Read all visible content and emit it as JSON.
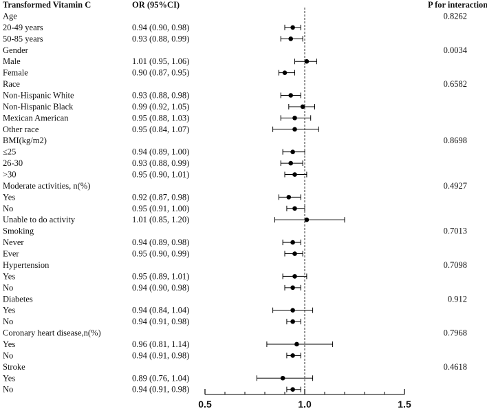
{
  "headers": {
    "group": "Transformed Vitamin C",
    "or": "OR (95%CI)",
    "p": "P for interaction"
  },
  "chart_data": {
    "type": "forest",
    "title": "",
    "xlabel": "",
    "xlim": [
      0.5,
      1.5
    ],
    "xticks": [
      0.5,
      1.0,
      1.5
    ],
    "xtick_labels": [
      "0.5",
      "1.0",
      "1.5"
    ],
    "reference_line": 1.0,
    "rows": [
      {
        "kind": "group",
        "label": "Age",
        "p": "0.8262"
      },
      {
        "kind": "item",
        "label": "20-49 years",
        "or_text": "0.94 (0.90, 0.98)",
        "or": 0.94,
        "lo": 0.9,
        "hi": 0.98
      },
      {
        "kind": "item",
        "label": "50-85 years",
        "or_text": "0.93 (0.88, 0.99)",
        "or": 0.93,
        "lo": 0.88,
        "hi": 0.99
      },
      {
        "kind": "group",
        "label": "Gender",
        "p": "0.0034"
      },
      {
        "kind": "item",
        "label": "Male",
        "or_text": "1.01 (0.95, 1.06)",
        "or": 1.01,
        "lo": 0.95,
        "hi": 1.06
      },
      {
        "kind": "item",
        "label": "Female",
        "or_text": "0.90 (0.87, 0.95)",
        "or": 0.9,
        "lo": 0.87,
        "hi": 0.95
      },
      {
        "kind": "group",
        "label": "Race",
        "p": "0.6582"
      },
      {
        "kind": "item",
        "label": "Non-Hispanic White",
        "or_text": "0.93 (0.88, 0.98)",
        "or": 0.93,
        "lo": 0.88,
        "hi": 0.98
      },
      {
        "kind": "item",
        "label": "Non-Hispanic Black",
        "or_text": "0.99 (0.92, 1.05)",
        "or": 0.99,
        "lo": 0.92,
        "hi": 1.05
      },
      {
        "kind": "item",
        "label": "Mexican American",
        "or_text": "0.95 (0.88, 1.03)",
        "or": 0.95,
        "lo": 0.88,
        "hi": 1.03
      },
      {
        "kind": "item",
        "label": "Other race",
        "or_text": "0.95 (0.84, 1.07)",
        "or": 0.95,
        "lo": 0.84,
        "hi": 1.07
      },
      {
        "kind": "group",
        "label": "BMI(kg/m2)",
        "p": "0.8698"
      },
      {
        "kind": "item",
        "label": "≤25",
        "or_text": "0.94 (0.89, 1.00)",
        "or": 0.94,
        "lo": 0.89,
        "hi": 1.0
      },
      {
        "kind": "item",
        "label": "26-30",
        "or_text": "0.93 (0.88, 0.99)",
        "or": 0.93,
        "lo": 0.88,
        "hi": 0.99
      },
      {
        "kind": "item",
        "label": ">30",
        "or_text": "0.95 (0.90, 1.01)",
        "or": 0.95,
        "lo": 0.9,
        "hi": 1.01
      },
      {
        "kind": "group",
        "label": "Moderate activities, n(%)",
        "p": "0.4927"
      },
      {
        "kind": "item",
        "label": "Yes",
        "or_text": "0.92 (0.87, 0.98)",
        "or": 0.92,
        "lo": 0.87,
        "hi": 0.98
      },
      {
        "kind": "item",
        "label": "No",
        "or_text": "0.95 (0.91, 1.00)",
        "or": 0.95,
        "lo": 0.91,
        "hi": 1.0
      },
      {
        "kind": "item",
        "label": "Unable to do activity",
        "or_text": "1.01 (0.85, 1.20)",
        "or": 1.01,
        "lo": 0.85,
        "hi": 1.2
      },
      {
        "kind": "group",
        "label": "Smoking",
        "p": "0.7013"
      },
      {
        "kind": "item",
        "label": "Never",
        "or_text": "0.94 (0.89, 0.98)",
        "or": 0.94,
        "lo": 0.89,
        "hi": 0.98
      },
      {
        "kind": "item",
        "label": "Ever",
        "or_text": "0.95 (0.90, 0.99)",
        "or": 0.95,
        "lo": 0.9,
        "hi": 0.99
      },
      {
        "kind": "group",
        "label": "Hypertension",
        "p": "0.7098"
      },
      {
        "kind": "item",
        "label": "Yes",
        "or_text": "0.95 (0.89, 1.01)",
        "or": 0.95,
        "lo": 0.89,
        "hi": 1.01
      },
      {
        "kind": "item",
        "label": "No",
        "or_text": "0.94 (0.90, 0.98)",
        "or": 0.94,
        "lo": 0.9,
        "hi": 0.98
      },
      {
        "kind": "group",
        "label": "Diabetes",
        "p": "0.912"
      },
      {
        "kind": "item",
        "label": "Yes",
        "or_text": "0.94 (0.84, 1.04)",
        "or": 0.94,
        "lo": 0.84,
        "hi": 1.04
      },
      {
        "kind": "item",
        "label": "No",
        "or_text": "0.94 (0.91, 0.98)",
        "or": 0.94,
        "lo": 0.91,
        "hi": 0.98
      },
      {
        "kind": "group",
        "label": "Coronary heart disease,n(%)",
        "p": "0.7968"
      },
      {
        "kind": "item",
        "label": "Yes",
        "or_text": "0.96 (0.81, 1.14)",
        "or": 0.96,
        "lo": 0.81,
        "hi": 1.14
      },
      {
        "kind": "item",
        "label": "No",
        "or_text": "0.94 (0.91, 0.98)",
        "or": 0.94,
        "lo": 0.91,
        "hi": 0.98
      },
      {
        "kind": "group",
        "label": "Stroke",
        "p": "0.4618"
      },
      {
        "kind": "item",
        "label": "Yes",
        "or_text": "0.89 (0.76, 1.04)",
        "or": 0.89,
        "lo": 0.76,
        "hi": 1.04
      },
      {
        "kind": "item",
        "label": "No",
        "or_text": "0.94 (0.91, 0.98)",
        "or": 0.94,
        "lo": 0.91,
        "hi": 0.98
      }
    ]
  }
}
